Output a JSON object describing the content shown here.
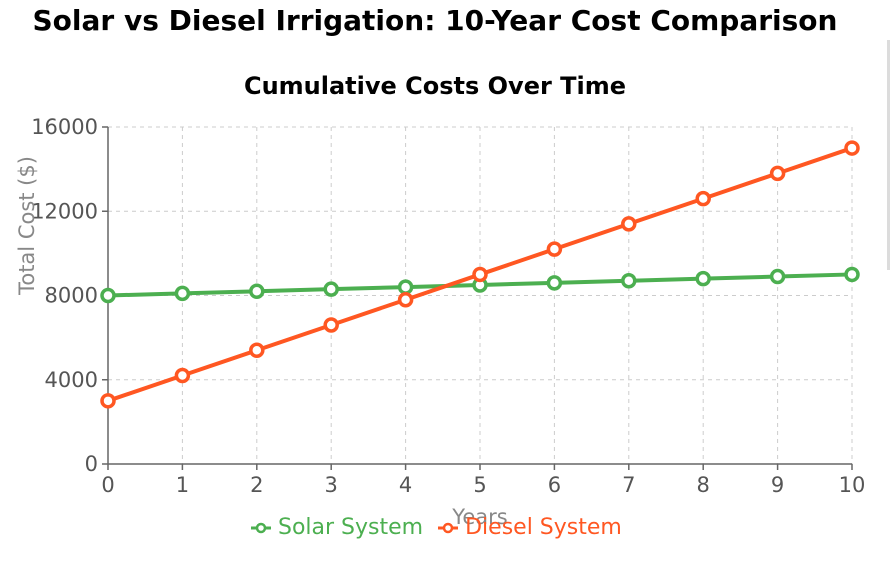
{
  "page": {
    "title": "Solar vs Diesel Irrigation: 10-Year Cost Comparison"
  },
  "chart_data": {
    "type": "line",
    "title": "Cumulative Costs Over Time",
    "xlabel": "Years",
    "ylabel": "Total Cost ($)",
    "x": [
      0,
      1,
      2,
      3,
      4,
      5,
      6,
      7,
      8,
      9,
      10
    ],
    "xlim": [
      0,
      10
    ],
    "ylim": [
      0,
      16000
    ],
    "yticks": [
      0,
      4000,
      8000,
      12000,
      16000
    ],
    "grid": true,
    "legend_position": "bottom",
    "series": [
      {
        "name": "Solar System",
        "color": "#4caf50",
        "values": [
          8000,
          8100,
          8200,
          8300,
          8400,
          8500,
          8600,
          8700,
          8800,
          8900,
          9000
        ]
      },
      {
        "name": "Diesel System",
        "color": "#ff5722",
        "values": [
          3000,
          4200,
          5400,
          6600,
          7800,
          9000,
          10200,
          11400,
          12600,
          13800,
          15000
        ]
      }
    ]
  }
}
